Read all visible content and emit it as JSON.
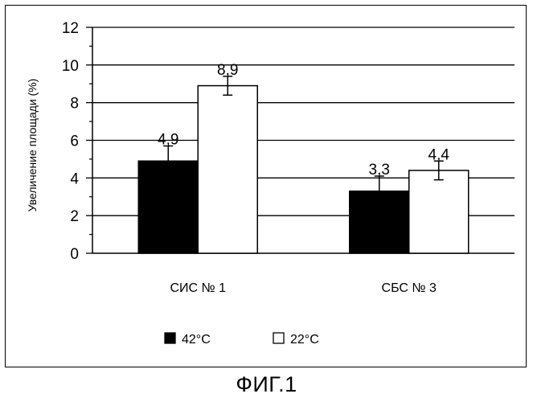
{
  "chart_data": {
    "type": "bar",
    "title": "",
    "xlabel": "",
    "ylabel": "Увеличение площади (%)",
    "ylim": [
      0,
      12
    ],
    "yticks": [
      0,
      2,
      4,
      6,
      8,
      10,
      12
    ],
    "grid": true,
    "legend_position": "bottom",
    "categories": [
      "СИС № 1",
      "СБС № 3"
    ],
    "series": [
      {
        "name": "42°C",
        "color": "#000000",
        "values": [
          4.9,
          3.3
        ],
        "labels": [
          "4,9",
          "3,3"
        ],
        "errors": [
          0.8,
          0.8
        ]
      },
      {
        "name": "22°C",
        "color": "#ffffff",
        "values": [
          8.9,
          4.4
        ],
        "labels": [
          "8,9",
          "4,4"
        ],
        "errors": [
          0.5,
          0.5
        ]
      }
    ]
  },
  "caption": "ФИГ.1"
}
